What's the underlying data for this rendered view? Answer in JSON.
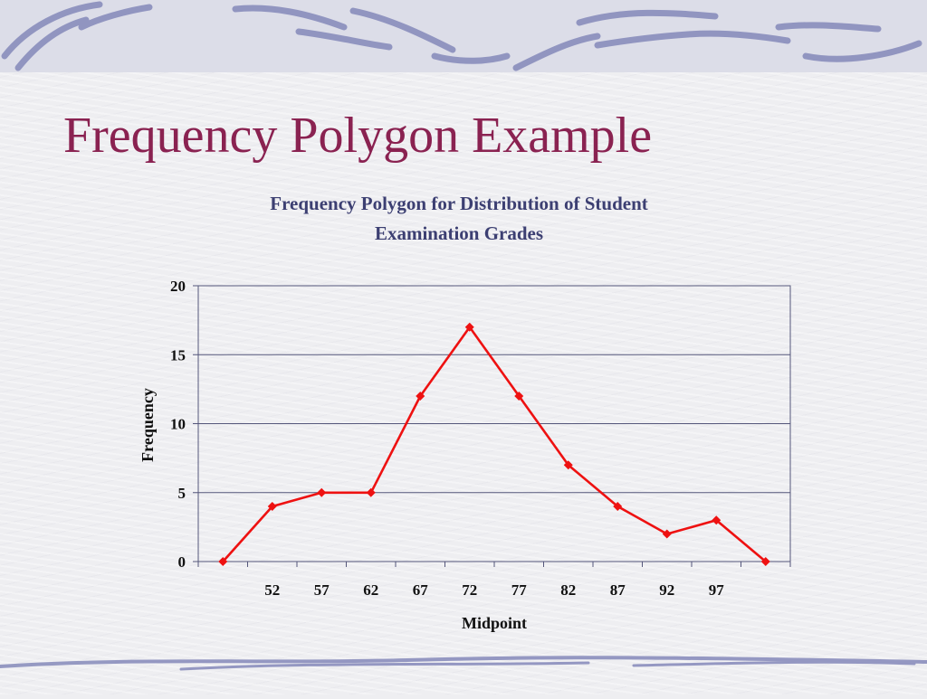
{
  "slide": {
    "title": "Frequency Polygon Example"
  },
  "colors": {
    "title": "#8a2251",
    "chart_title": "#3c3f72",
    "line": "#ee1111",
    "grid": "#54567a",
    "decor": "#7b7fb2"
  },
  "chart_data": {
    "type": "line",
    "title_lines": [
      "Frequency Polygon for Distribution of Student",
      "Examination Grades"
    ],
    "xlabel": "Midpoint",
    "ylabel": "Frequency",
    "categories": [
      "",
      "52",
      "57",
      "62",
      "67",
      "72",
      "77",
      "82",
      "87",
      "92",
      "97",
      ""
    ],
    "values": [
      0,
      4,
      5,
      5,
      12,
      17,
      12,
      7,
      4,
      2,
      3,
      0
    ],
    "ylim": [
      0,
      20
    ],
    "yticks": [
      0,
      5,
      10,
      15,
      20
    ],
    "grid": true,
    "marker": "diamond",
    "legend": false
  }
}
